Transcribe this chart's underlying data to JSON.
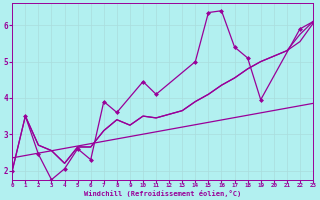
{
  "background_color": "#b2f0f0",
  "grid_color": "#c8e8e8",
  "line_color": "#990099",
  "xlabel": "Windchill (Refroidissement éolien,°C)",
  "xlim": [
    0,
    23
  ],
  "ylim": [
    1.75,
    6.6
  ],
  "xticks": [
    0,
    1,
    2,
    3,
    4,
    5,
    6,
    7,
    8,
    9,
    10,
    11,
    12,
    13,
    14,
    15,
    16,
    17,
    18,
    19,
    20,
    21,
    22,
    23
  ],
  "yticks": [
    2,
    3,
    4,
    5,
    6
  ],
  "line1_x": [
    0,
    1,
    2,
    3,
    4,
    5,
    6,
    7,
    8,
    10,
    11,
    14,
    15,
    16,
    17,
    18,
    19,
    22,
    23
  ],
  "line1_y": [
    2.0,
    3.5,
    2.45,
    1.75,
    2.05,
    2.6,
    2.3,
    3.9,
    3.6,
    4.45,
    4.1,
    5.0,
    6.35,
    6.4,
    5.4,
    5.1,
    3.95,
    5.9,
    6.1
  ],
  "line2_x": [
    1,
    2,
    3,
    4,
    5,
    6,
    7,
    8,
    9,
    10,
    11,
    12,
    13,
    14,
    15,
    16,
    17,
    18,
    19,
    20,
    21,
    22,
    23
  ],
  "line2_y": [
    3.5,
    2.7,
    2.55,
    2.2,
    2.65,
    2.65,
    3.1,
    3.4,
    3.25,
    3.5,
    3.45,
    3.55,
    3.65,
    3.9,
    4.1,
    4.35,
    4.55,
    4.8,
    5.0,
    5.15,
    5.3,
    5.55,
    6.05
  ],
  "line3_x": [
    0,
    1,
    2,
    3,
    4,
    5,
    6,
    7,
    8,
    9,
    10,
    11,
    12,
    13,
    14,
    15,
    16,
    17,
    18,
    19,
    20,
    21,
    22,
    23
  ],
  "line3_y": [
    2.0,
    3.5,
    2.7,
    2.55,
    2.2,
    2.65,
    2.65,
    3.1,
    3.4,
    3.25,
    3.5,
    3.45,
    3.55,
    3.65,
    3.9,
    4.1,
    4.35,
    4.55,
    4.8,
    5.0,
    5.15,
    5.3,
    5.75,
    6.1
  ],
  "line4_x": [
    0,
    23
  ],
  "line4_y": [
    2.35,
    3.85
  ]
}
